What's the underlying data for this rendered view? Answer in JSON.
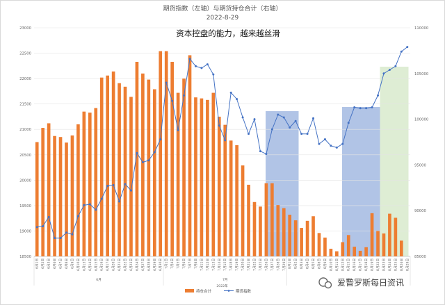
{
  "chart_data": {
    "type": "bar",
    "title": "期货指数（左轴）与期货持仓合计（右轴）",
    "subtitle": "2022-8-29",
    "annotation": "资本控盘的能力，越来越丝滑",
    "left_axis": {
      "min": 18500,
      "max": 23000,
      "ticks": [
        18500,
        19000,
        19500,
        20000,
        20500,
        21000,
        21500,
        22000,
        22500,
        23000
      ]
    },
    "right_axis": {
      "min": 85000,
      "max": 110000,
      "ticks": [
        85000,
        90000,
        95000,
        100000,
        105000,
        110000
      ]
    },
    "categories": [
      "6月1日",
      "6月2日",
      "6月3日",
      "6月6日",
      "6月7日",
      "6月8日",
      "6月9日",
      "6月10日",
      "6月13日",
      "6月14日",
      "6月15日",
      "6月16日",
      "6月17日",
      "6月20日",
      "6月21日",
      "6月22日",
      "6月23日",
      "6月24日",
      "6月27日",
      "6月28日",
      "6月29日",
      "6月30日",
      "7月1日",
      "7月4日",
      "7月5日",
      "7月6日",
      "7月7日",
      "7月8日",
      "7月11日",
      "7月12日",
      "7月13日",
      "7月14日",
      "7月15日",
      "7月18日",
      "7月19日",
      "7月20日",
      "7月21日",
      "7月22日",
      "7月25日",
      "7月26日",
      "7月27日",
      "7月28日",
      "7月29日",
      "8月1日",
      "8月2日",
      "8月3日",
      "8月4日",
      "8月5日",
      "8月8日",
      "8月9日",
      "8月10日",
      "8月11日",
      "8月12日",
      "8月15日",
      "8月16日",
      "8月17日",
      "8月18日",
      "8月19日",
      "8月22日",
      "8月23日",
      "8月24日",
      "8月25日",
      "8月26日",
      "8月29日"
    ],
    "month_labels": [
      {
        "label": "6月",
        "from": 0,
        "to": 21
      },
      {
        "label": "7月",
        "from": 22,
        "to": 42
      },
      {
        "label": "8月",
        "from": 43,
        "to": 63
      }
    ],
    "year_label": "2022年",
    "series": [
      {
        "name": "持仓合计",
        "type": "bar",
        "axis": "left",
        "color": "#ed7d31",
        "values": [
          20750,
          21030,
          21120,
          20870,
          20850,
          20740,
          20880,
          21100,
          21350,
          21330,
          21420,
          22020,
          22060,
          22140,
          21910,
          21840,
          21640,
          22330,
          22100,
          21980,
          21790,
          22540,
          22540,
          22330,
          21720,
          22000,
          22460,
          21630,
          21610,
          21580,
          21720,
          21250,
          21090,
          20780,
          20690,
          20290,
          19910,
          19570,
          19480,
          19940,
          19940,
          19510,
          19450,
          19320,
          19210,
          19060,
          19200,
          19290,
          18960,
          18870,
          18650,
          18600,
          18780,
          18920,
          18690,
          18610,
          18680,
          19350,
          19000,
          18950,
          19340,
          19260,
          18810,
          18420
        ]
      },
      {
        "name": "期货指数",
        "type": "line",
        "axis": "right",
        "color": "#4472c4",
        "values": [
          88200,
          88300,
          89300,
          87000,
          87000,
          87600,
          87400,
          89400,
          90600,
          90700,
          90100,
          91300,
          92700,
          92800,
          91000,
          92900,
          92200,
          96300,
          95300,
          95500,
          96400,
          97800,
          104000,
          102000,
          98800,
          102600,
          106600,
          105800,
          105600,
          106000,
          104900,
          99300,
          97700,
          102900,
          102200,
          100200,
          98400,
          100000,
          96500,
          96200,
          98900,
          100500,
          100200,
          99100,
          99800,
          98400,
          98400,
          100100,
          97300,
          97800,
          97100,
          96900,
          97300,
          99600,
          101300,
          101200,
          101200,
          101300,
          102600,
          105000,
          105400,
          105800,
          107400,
          107900
        ]
      }
    ]
  },
  "legend": [
    "持仓合计",
    "期货指数"
  ],
  "watermark": "爱普罗斯每日资讯"
}
